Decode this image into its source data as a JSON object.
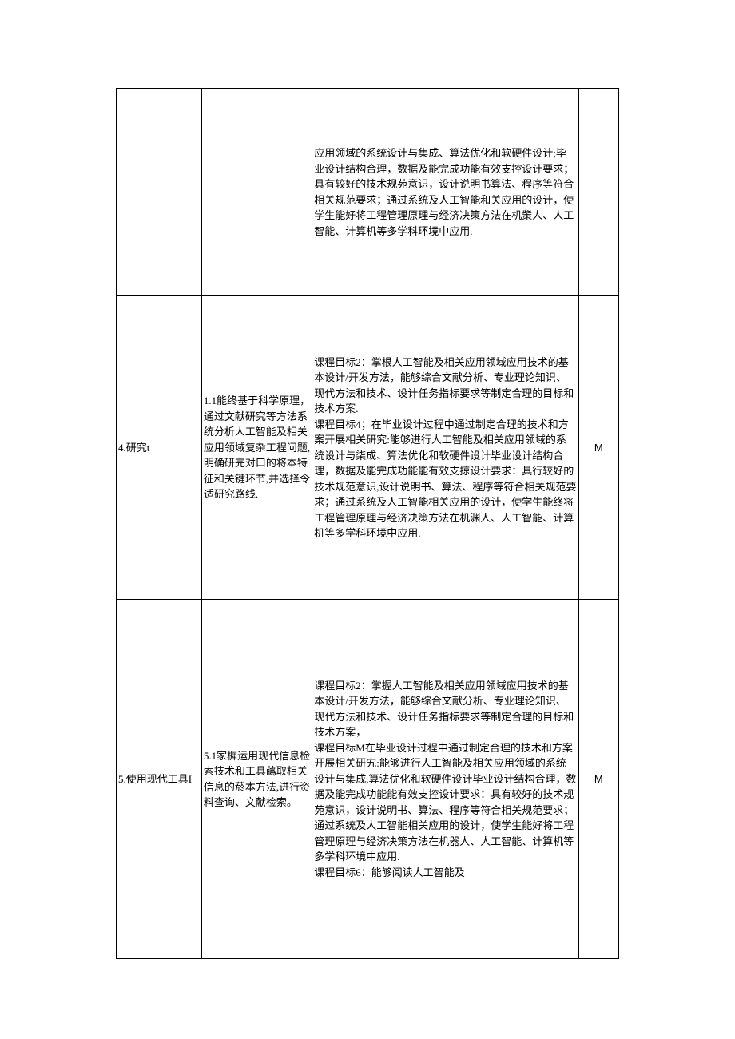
{
  "table": {
    "rows": [
      {
        "col1": "",
        "col2": "",
        "col3": "应用领域的系统设计与集成、算法优化和软硬件设计;毕业设计结构合理，数据及能完成功能有效支控设计要求；具有较好的技术规苑意识，设计说明书算法、程序等符合相关规范要求；通过系统及人工智能和关应用的设计，使学生能好将工程管理原理与经济决策方法在机㭰人、人工智能、计算机等多学科环境中应用.",
        "col4": ""
      },
      {
        "col1": "4.研究t",
        "col2": "1.1能终基于科学原理，通过文献研究等方法系统分析人工智能及相关应用领域复杂工程问题,明确研完对口的将本特征和关键环节,并选择令适研究路线.",
        "col3": "课程目标2：掌根人工智能及相关应用领域应用技术的基本设计/开发方法，能够综合文献分析、专业理论知识、现代方法和技术、设计任务指标要求等制定合理的目标和技术方案.\n课程目标4；在毕业设计过程中通过制定合理的技术和方案开展相关研究:能够进行人工智能及相关应用领域的系统设计与柒成、算法优化和软硬件设计毕业设计结构合理，数据及能完成功能能有效支掠设计要求：具行较好的技术规范意识,设计说明书、算法、程序等符合相关规范要求；通过系统及人工智能相关应用的设计，使学生能终将工程管理原理与经济决策方法在机渊人、人工智能、计算机等多学科环境中应用.",
        "col4": "M"
      },
      {
        "col1": "5.使用现代工具I",
        "col2": "5.1家樨运用现代信息检索技术和工具蘤取相关信息的菸本方法,进行资料查询、文献检索。",
        "col3": "课程目标2：掌握人工智能及相关应用领域应用技术的基本设计/开发方法，能够综合文献分析、专业理论知识、现代方法和技术、设计任务指标要求等制定合理的目标和技术方案，\n课程目标M在毕业设计过程中通过制定合理的技术和方案开展相关研宄:能够进行人工智能及相关应用领域的系统设计与集成,算法优化和软硬件设计毕业设计结构合理，数据及能完成功能能有效支控设计要求：具有较好的技术规苑意识，设计说明书、算法、程序等符合相关规范要求；通过系统及人工智能相关应用的设计，使学生能好将工程管理原理与经济决策方法在机器人、人工智能、计算机等多学科环境中应用.\n课程目标6：能够阅读人工智能及",
        "col4": "M"
      }
    ]
  }
}
